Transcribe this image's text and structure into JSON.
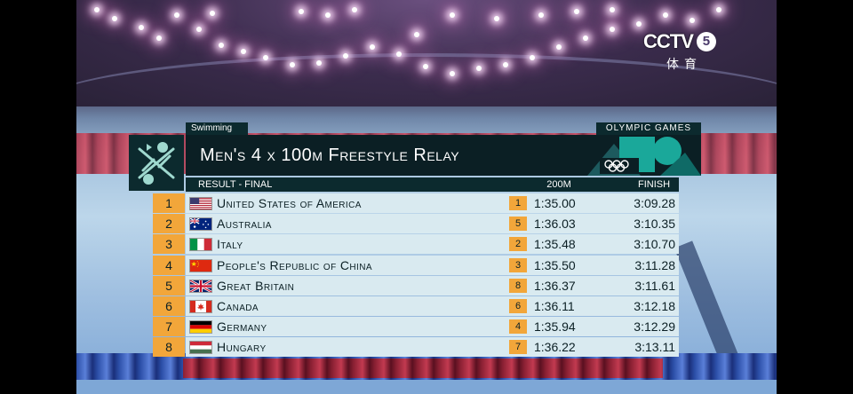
{
  "broadcaster": {
    "logo": "CCTV",
    "channel": "5",
    "subtitle": "体育"
  },
  "graphic": {
    "sport": "Swimming",
    "games": "OLYMPIC GAMES",
    "title": "Men's 4 x 100m Freestyle Relay",
    "stage": "RESULT - FINAL",
    "col_split": "200M",
    "col_finish": "FINISH",
    "colors": {
      "dark": "#0b1f24",
      "rank_orange": "#f2a63a",
      "row_bg": "#d9eaf0",
      "accent_teal": "#1aa89a"
    },
    "rows": [
      {
        "rank": "1",
        "country": "United States of America",
        "flag": "usa-flag",
        "split_rank": "1",
        "split": "1:35.00",
        "finish": "3:09.28"
      },
      {
        "rank": "2",
        "country": "Australia",
        "flag": "australia-flag",
        "split_rank": "5",
        "split": "1:36.03",
        "finish": "3:10.35"
      },
      {
        "rank": "3",
        "country": "Italy",
        "flag": "italy-flag",
        "split_rank": "2",
        "split": "1:35.48",
        "finish": "3:10.70"
      },
      {
        "rank": "4",
        "country": "People's Republic of China",
        "flag": "china-flag",
        "split_rank": "3",
        "split": "1:35.50",
        "finish": "3:11.28"
      },
      {
        "rank": "5",
        "country": "Great Britain",
        "flag": "great-britain-flag",
        "split_rank": "8",
        "split": "1:36.37",
        "finish": "3:11.61"
      },
      {
        "rank": "6",
        "country": "Canada",
        "flag": "canada-flag",
        "split_rank": "6",
        "split": "1:36.11",
        "finish": "3:12.18"
      },
      {
        "rank": "7",
        "country": "Germany",
        "flag": "germany-flag",
        "split_rank": "4",
        "split": "1:35.94",
        "finish": "3:12.29"
      },
      {
        "rank": "8",
        "country": "Hungary",
        "flag": "hungary-flag",
        "split_rank": "7",
        "split": "1:36.22",
        "finish": "3:13.11"
      }
    ]
  }
}
